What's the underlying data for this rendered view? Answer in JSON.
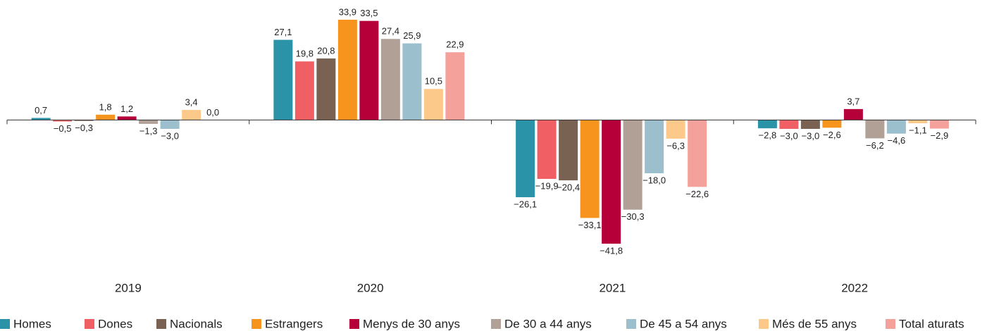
{
  "chart_data": {
    "type": "bar",
    "categories": [
      "2019",
      "2020",
      "2021",
      "2022"
    ],
    "series": [
      {
        "name": "Homes",
        "color": "#2a93a8",
        "values": [
          0.7,
          27.1,
          -26.1,
          -2.8
        ],
        "value_labels": [
          "0,7",
          "27,1",
          "−26,1",
          "−2,8"
        ]
      },
      {
        "name": "Dones",
        "color": "#ef5f64",
        "values": [
          -0.5,
          19.8,
          -19.9,
          -3.0
        ],
        "value_labels": [
          "−0,5",
          "19,8",
          "−19,9",
          "−3,0"
        ]
      },
      {
        "name": "Nacionals",
        "color": "#7a6253",
        "values": [
          -0.3,
          20.8,
          -20.4,
          -3.0
        ],
        "value_labels": [
          "−0,3",
          "20,8",
          "−20,4",
          "−3,0"
        ]
      },
      {
        "name": "Estrangers",
        "color": "#f7941d",
        "values": [
          1.8,
          33.9,
          -33.1,
          -2.6
        ],
        "value_labels": [
          "1,8",
          "33,9",
          "−33,1",
          "−2,6"
        ]
      },
      {
        "name": "Menys de 30 anys",
        "color": "#b5003a",
        "values": [
          1.2,
          33.5,
          -41.8,
          3.7
        ],
        "value_labels": [
          "1,2",
          "33,5",
          "−41,8",
          "3,7"
        ]
      },
      {
        "name": "De 30 a 44 anys",
        "color": "#b0a096",
        "values": [
          -1.3,
          27.4,
          -30.3,
          -6.2
        ],
        "value_labels": [
          "−1,3",
          "27,4",
          "−30,3",
          "−6,2"
        ]
      },
      {
        "name": "De 45 a 54 anys",
        "color": "#9bbfcd",
        "values": [
          -3.0,
          25.9,
          -18.0,
          -4.6
        ],
        "value_labels": [
          "−3,0",
          "25,9",
          "−18,0",
          "−4,6"
        ]
      },
      {
        "name": "Més de 55 anys",
        "color": "#fdc98a",
        "values": [
          3.4,
          10.5,
          -6.3,
          -1.1
        ],
        "value_labels": [
          "3,4",
          "10,5",
          "−6,3",
          "−1,1"
        ]
      },
      {
        "name": "Total aturats",
        "color": "#f5a19b",
        "values": [
          0.0,
          22.9,
          -22.6,
          -2.9
        ],
        "value_labels": [
          "0,0",
          "22,9",
          "−22,6",
          "−2,9"
        ]
      }
    ],
    "legend": "bottom"
  }
}
